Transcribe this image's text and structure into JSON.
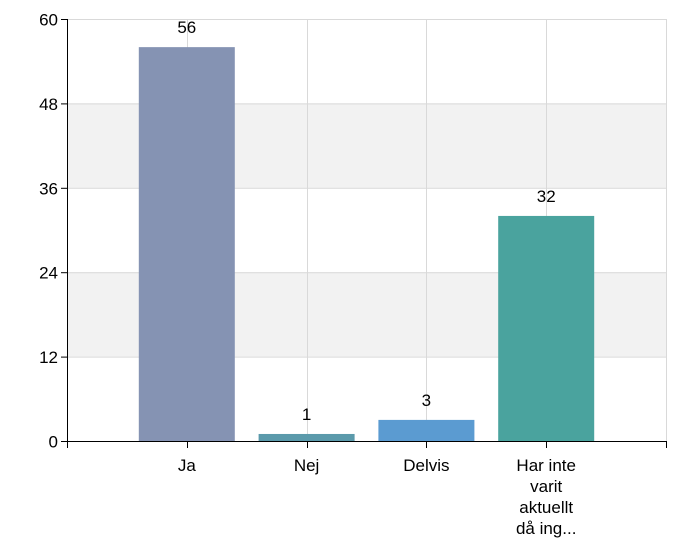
{
  "chart_data": {
    "type": "bar",
    "categories": [
      "Ja",
      "Nej",
      "Delvis",
      "Har inte varit aktuellt då ing..."
    ],
    "category_lines": [
      [
        "Ja"
      ],
      [
        "Nej"
      ],
      [
        "Delvis"
      ],
      [
        "Har inte",
        "varit",
        "aktuellt",
        "då ing..."
      ]
    ],
    "values": [
      56,
      1,
      3,
      32
    ],
    "value_labels": [
      "56",
      "1",
      "3",
      "32"
    ],
    "colors": [
      "#8593b3",
      "#5b9aab",
      "#5b9bd1",
      "#4aa39e"
    ],
    "ylim": [
      0,
      60
    ],
    "yticks": [
      0,
      12,
      24,
      36,
      48,
      60
    ],
    "ytick_labels": [
      "0",
      "12",
      "24",
      "36",
      "48",
      "60"
    ],
    "grid": true,
    "alternating_bands": true,
    "band_color": "#f2f2f2",
    "grid_color": "#d9d9d9"
  }
}
